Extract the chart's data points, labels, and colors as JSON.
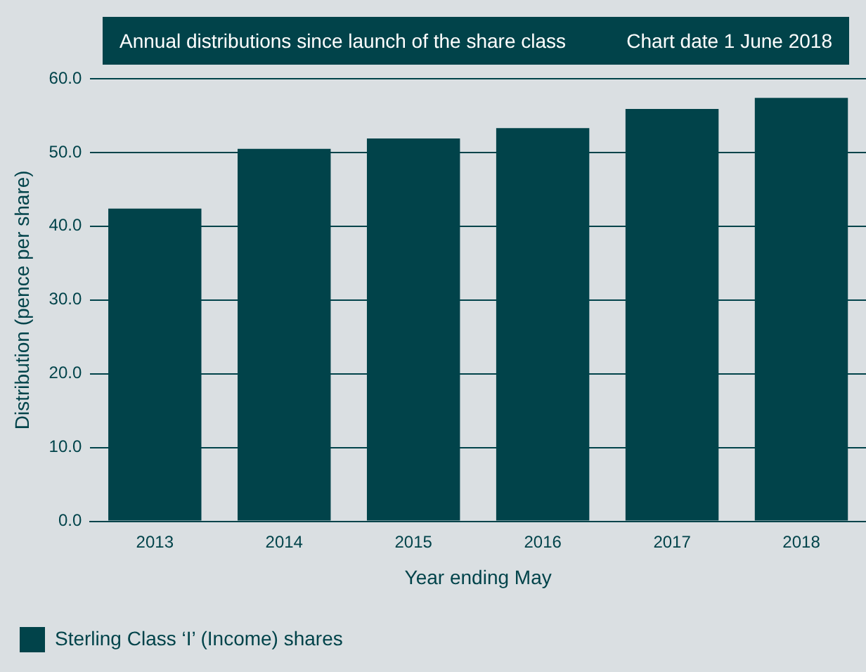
{
  "chart_data": {
    "type": "bar",
    "title": "Annual distributions since launch of the share class",
    "subtitle": "Chart date 1 June 2018",
    "xlabel": "Year ending May",
    "ylabel": "Distribution (pence per share)",
    "categories": [
      "2013",
      "2014",
      "2015",
      "2016",
      "2017",
      "2018"
    ],
    "series": [
      {
        "name": "Sterling Class ‘I’ (Income) shares",
        "color": "#01434a",
        "values": [
          42.4,
          50.5,
          51.9,
          53.3,
          55.9,
          57.4
        ]
      }
    ],
    "ylim": [
      0,
      60
    ],
    "yticks": [
      {
        "value": 0,
        "label": "0.0"
      },
      {
        "value": 10,
        "label": "10.0"
      },
      {
        "value": 20,
        "label": "20.0"
      },
      {
        "value": 30,
        "label": "30.0"
      },
      {
        "value": 40,
        "label": "40.0"
      },
      {
        "value": 50,
        "label": "50.0"
      },
      {
        "value": 60,
        "label": "60.0"
      }
    ],
    "grid": "y",
    "legend": "bottom left"
  }
}
